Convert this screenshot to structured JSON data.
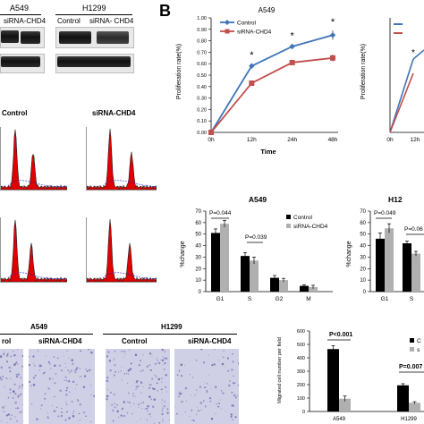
{
  "panel_label": "B",
  "western": {
    "cell_lines": [
      "A549",
      "H1299"
    ],
    "lane_labels": [
      "siRNA-CHD4",
      "Control",
      "siRNA- CHD4"
    ]
  },
  "proliferation": {
    "title": "A549",
    "ylabel": "Proliferation rate(%)",
    "xlabel": "Time",
    "x_ticks": [
      "0h",
      "12h",
      "24h",
      "48h"
    ],
    "y_ticks": [
      "0.00",
      "0.10",
      "0.20",
      "0.30",
      "0.40",
      "0.50",
      "0.60",
      "0.70",
      "0.80",
      "0.90",
      "1.00"
    ],
    "significance": [
      "*",
      "*",
      "*"
    ],
    "second_panel": {
      "ylabel": "Proliferation rate(%)",
      "x_ticks": [
        "0h",
        "12h"
      ],
      "significance": [
        "*"
      ]
    }
  },
  "flow": {
    "headers": [
      "Control",
      "siRNA-CHD4"
    ]
  },
  "cellcycle": {
    "title": "A549",
    "ylabel": "%change",
    "categories": [
      "G1",
      "S",
      "G2",
      "M"
    ],
    "y_ticks": [
      "0",
      "10",
      "20",
      "30",
      "40",
      "50",
      "60",
      "70"
    ],
    "pvalues": [
      "P=0.044",
      "P=0.039"
    ],
    "legend": [
      "Control",
      "siRNA-CHD4"
    ],
    "second_panel": {
      "title": "H12",
      "ylabel": "%change",
      "categories": [
        "G1",
        "S"
      ],
      "y_ticks": [
        "0",
        "10",
        "20",
        "30",
        "40",
        "50",
        "60",
        "70"
      ],
      "pvalues": [
        "P=0.049",
        "P=0.06"
      ]
    }
  },
  "migration": {
    "groups": [
      "A549",
      "H1299"
    ],
    "lanes": [
      "rol",
      "siRNA-CHD4",
      "Control",
      "siRNA-CHD4"
    ],
    "ylabel": "Migrated cell number per field",
    "y_ticks": [
      "0",
      "100",
      "200",
      "300",
      "400",
      "500",
      "600"
    ],
    "categories": [
      "A549",
      "H1299"
    ],
    "pvalues": [
      "P<0.001",
      "P=0.007"
    ],
    "legend": [
      "C",
      "s"
    ]
  },
  "chart_data": [
    {
      "type": "line",
      "title": "A549",
      "xlabel": "Time",
      "ylabel": "Proliferation rate(%)",
      "x": [
        "0h",
        "12h",
        "24h",
        "48h"
      ],
      "ylim": [
        0,
        1.0
      ],
      "legend_position": "top-left",
      "series": [
        {
          "name": "Control",
          "values": [
            0.0,
            0.58,
            0.75,
            0.85
          ],
          "errors": [
            0.0,
            0.02,
            0.02,
            0.04
          ],
          "color": "#3f74b8"
        },
        {
          "name": "siRNA-CHD4",
          "values": [
            0.0,
            0.43,
            0.61,
            0.65
          ],
          "errors": [
            0.0,
            0.02,
            0.02,
            0.03
          ],
          "color": "#c0504d"
        }
      ]
    },
    {
      "type": "bar",
      "title": "A549",
      "ylabel": "%change",
      "categories": [
        "G1",
        "S",
        "G2",
        "M"
      ],
      "ylim": [
        0,
        70
      ],
      "legend_position": "top-right",
      "series": [
        {
          "name": "Control",
          "values": [
            51,
            31,
            12,
            5
          ],
          "errors": [
            3.5,
            3,
            2,
            1
          ],
          "color": "#000000"
        },
        {
          "name": "siRNA-CHD4",
          "values": [
            59,
            27,
            10,
            4
          ],
          "errors": [
            3,
            3,
            1.5,
            1.5
          ],
          "color": "#b0b0b0"
        }
      ]
    },
    {
      "type": "bar",
      "title": "H12",
      "ylabel": "%change",
      "categories": [
        "G1",
        "S"
      ],
      "ylim": [
        0,
        70
      ],
      "series": [
        {
          "name": "Control",
          "values": [
            46,
            42
          ],
          "errors": [
            5,
            2
          ],
          "color": "#000000"
        },
        {
          "name": "siRNA-CHD4",
          "values": [
            55,
            33
          ],
          "errors": [
            4,
            2
          ],
          "color": "#b0b0b0"
        }
      ]
    },
    {
      "type": "bar",
      "ylabel": "Migrated cell number per field",
      "categories": [
        "A549",
        "H1299"
      ],
      "ylim": [
        0,
        600
      ],
      "legend_position": "top-right",
      "series": [
        {
          "name": "C",
          "values": [
            465,
            195
          ],
          "errors": [
            25,
            12
          ],
          "color": "#000000"
        },
        {
          "name": "s",
          "values": [
            95,
            65
          ],
          "errors": [
            20,
            8
          ],
          "color": "#b0b0b0"
        }
      ]
    }
  ]
}
